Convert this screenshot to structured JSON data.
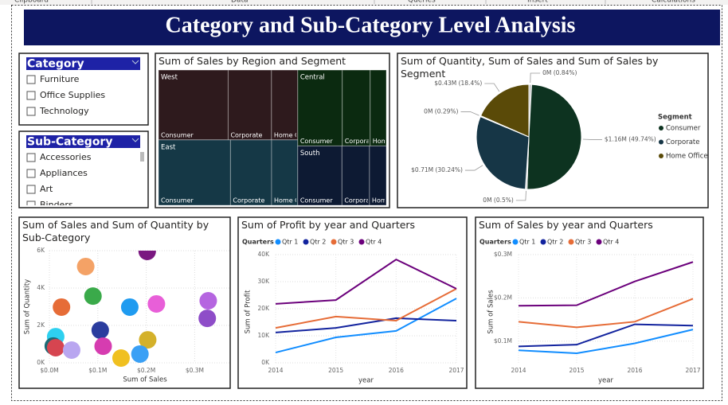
{
  "ribbon": [
    "Clipboard",
    "Data",
    "Queries",
    "Insert",
    "Calculations"
  ],
  "header": {
    "title": "Category and Sub-Category Level Analysis"
  },
  "slicers": [
    {
      "title": "Category",
      "items": [
        "Furniture",
        "Office Supplies",
        "Technology"
      ]
    },
    {
      "title": "Sub-Category",
      "items": [
        "Accessories",
        "Appliances",
        "Art",
        "Binders"
      ]
    }
  ],
  "chart_data": [
    {
      "type": "treemap",
      "title": "Sum of Sales by Region and Segment",
      "segments": [
        "Consumer",
        "Corporate",
        "Home Office"
      ],
      "regions": [
        {
          "name": "West",
          "color": "#2e1a1d",
          "values": [
            362880,
            225855,
            136722
          ]
        },
        {
          "name": "East",
          "color": "#153846",
          "values": [
            350908,
            200409,
            127464
          ]
        },
        {
          "name": "Central",
          "color": "#0b2a10",
          "values": [
            252031,
            157996,
            91213
          ]
        },
        {
          "name": "South",
          "color": "#0d1a33",
          "values": [
            195581,
            121885,
            74255
          ]
        }
      ]
    },
    {
      "type": "pie",
      "title": "Sum of Quantity, Sum of Sales and Sum of Sales by Segment",
      "values": [
        0.84,
        49.74,
        0.5,
        30.24,
        0.29,
        18.4
      ],
      "value_labels": [
        "0M (0.84%)",
        "$1.16M (49.74%)",
        "0M (0.5%)",
        "$0.71M (30.24%)",
        "0M (0.29%)",
        "$0.43M (18.4%)"
      ],
      "colors": [
        "#c9c9c9",
        "#0d3320",
        "#c9c9c9",
        "#163646",
        "#c9c9c9",
        "#5a4a08"
      ],
      "legend_title": "Segment",
      "legend": [
        {
          "name": "Consumer",
          "color": "#0d3320"
        },
        {
          "name": "Corporate",
          "color": "#163646"
        },
        {
          "name": "Home Office",
          "color": "#5a4a08"
        }
      ]
    },
    {
      "type": "scatter",
      "title": "Sum of Sales and Sum of Quantity by Sub-Category",
      "x_label": "Sum of Sales",
      "y_label": "Sum of Quantity",
      "x": [
        75000,
        90000,
        202000,
        25000,
        166000,
        221000,
        328000,
        326000,
        105000,
        13000,
        8000,
        13000,
        46000,
        111000,
        203000,
        187000,
        148000
      ],
      "values": [
        5150,
        3570,
        5960,
        2980,
        2980,
        3150,
        3320,
        2380,
        1745,
        1400,
        900,
        810,
        680,
        890,
        1230,
        470,
        255
      ],
      "colors": [
        "#f4a266",
        "#3aaa4a",
        "#7a1780",
        "#e66c37",
        "#1f9bf0",
        "#e85fd8",
        "#b565e0",
        "#8e4dc8",
        "#2a3c9e",
        "#2ed0ef",
        "#1a6a75",
        "#d64550",
        "#b9a6f0",
        "#d63cb0",
        "#d4b12a",
        "#3aa0f5",
        "#f0c020"
      ],
      "xlim": [
        0,
        375000
      ],
      "xticks": [
        {
          "value": 0,
          "label": "$0.0M"
        },
        {
          "value": 100000,
          "label": "$0.1M"
        },
        {
          "value": 200000,
          "label": "$0.2M"
        },
        {
          "value": 300000,
          "label": "$0.3M"
        }
      ],
      "ylim": [
        0,
        6000
      ],
      "yticks": [
        {
          "value": 0,
          "label": "0K"
        },
        {
          "value": 2000,
          "label": "2K"
        },
        {
          "value": 4000,
          "label": "4K"
        },
        {
          "value": 6000,
          "label": "6K"
        }
      ],
      "grid": true
    },
    {
      "type": "line",
      "title": "Sum of Profit by year and Quarters",
      "legend_title": "Quarters",
      "x_label": "year",
      "y_label": "Sum of Profit",
      "x": [
        2014,
        2015,
        2016,
        2017
      ],
      "xlim": [
        2014,
        2017
      ],
      "xticks": [
        2014,
        2015,
        2016,
        2017
      ],
      "ylim": [
        0,
        40000
      ],
      "yticks": [
        {
          "value": 0,
          "label": "0K"
        },
        {
          "value": 10000,
          "label": "10K"
        },
        {
          "value": 20000,
          "label": "20K"
        },
        {
          "value": 30000,
          "label": "30K"
        },
        {
          "value": 40000,
          "label": "40K"
        }
      ],
      "grid": true,
      "series": [
        {
          "name": "Qtr 1",
          "color": "#118dff",
          "values": [
            3800,
            9400,
            11800,
            23800
          ]
        },
        {
          "name": "Qtr 2",
          "color": "#12239e",
          "values": [
            11200,
            12900,
            16500,
            15600
          ]
        },
        {
          "name": "Qtr 3",
          "color": "#e66c37",
          "values": [
            12900,
            17100,
            15600,
            27400
          ]
        },
        {
          "name": "Qtr 4",
          "color": "#6b007b",
          "values": [
            21800,
            23200,
            38200,
            27400
          ]
        }
      ]
    },
    {
      "type": "line",
      "title": "Sum of Sales by year and Quarters",
      "legend_title": "Quarters",
      "x_label": "year",
      "y_label": "Sum of Sales",
      "x": [
        2014,
        2015,
        2016,
        2017
      ],
      "xlim": [
        2014,
        2017
      ],
      "xticks": [
        2014,
        2015,
        2016,
        2017
      ],
      "ylim": [
        50000,
        300000
      ],
      "yticks": [
        {
          "value": 100000,
          "label": "$0.1M"
        },
        {
          "value": 200000,
          "label": "$0.2M"
        },
        {
          "value": 300000,
          "label": "$0.3M"
        }
      ],
      "grid": true,
      "series": [
        {
          "name": "Qtr 1",
          "color": "#118dff",
          "values": [
            79000,
            72000,
            95000,
            127000
          ]
        },
        {
          "name": "Qtr 2",
          "color": "#12239e",
          "values": [
            88000,
            92000,
            139000,
            136000
          ]
        },
        {
          "name": "Qtr 3",
          "color": "#e66c37",
          "values": [
            145000,
            132000,
            145000,
            198000
          ]
        },
        {
          "name": "Qtr 4",
          "color": "#6b007b",
          "values": [
            182000,
            183000,
            238000,
            283000
          ]
        }
      ]
    }
  ]
}
